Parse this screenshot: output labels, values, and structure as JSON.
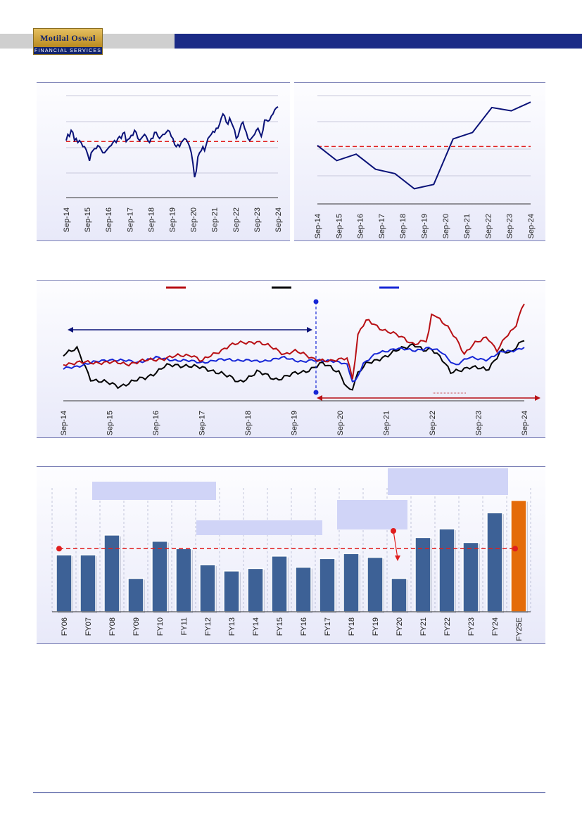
{
  "header": {
    "logo_top": "Motilal Oswal",
    "logo_bottom": "FINANCIAL SERVICES"
  },
  "charts": [
    {
      "type": "line",
      "x_ticks": [
        "Sep-14",
        "Sep-15",
        "Sep-16",
        "Sep-17",
        "Sep-18",
        "Sep-19",
        "Sep-20",
        "Sep-21",
        "Sep-22",
        "Sep-23",
        "Sep-24"
      ],
      "series_color": "#0a1278",
      "reference_color": "#e01e1e"
    },
    {
      "type": "line",
      "x_ticks": [
        "Sep-14",
        "Sep-15",
        "Sep-16",
        "Sep-17",
        "Sep-18",
        "Sep-19",
        "Sep-20",
        "Sep-21",
        "Sep-22",
        "Sep-23",
        "Sep-24"
      ],
      "series_color": "#0a1278",
      "reference_color": "#e01e1e"
    },
    {
      "type": "line",
      "x_ticks": [
        "Sep-14",
        "Sep-15",
        "Sep-16",
        "Sep-17",
        "Sep-18",
        "Sep-19",
        "Sep-20",
        "Sep-21",
        "Sep-22",
        "Sep-23",
        "Sep-24"
      ],
      "series_colors": [
        "#b80f14",
        "#000000",
        "#1626d6"
      ]
    },
    {
      "type": "bar",
      "categories": [
        "FY06",
        "FY07",
        "FY08",
        "FY09",
        "FY10",
        "FY11",
        "FY12",
        "FY13",
        "FY14",
        "FY15",
        "FY16",
        "FY17",
        "FY18",
        "FY19",
        "FY20",
        "FY21",
        "FY22",
        "FY23",
        "FY24",
        "FY25E"
      ],
      "bar_color": "#3d6196",
      "highlight_color": "#e46c0a"
    }
  ],
  "chart_data": [
    {
      "type": "line",
      "x_ticks": [
        "Sep-14",
        "Sep-15",
        "Sep-16",
        "Sep-17",
        "Sep-18",
        "Sep-19",
        "Sep-20",
        "Sep-21",
        "Sep-22",
        "Sep-23",
        "Sep-24"
      ],
      "y_range": [
        0,
        100
      ],
      "reference_value": 55,
      "series": [
        {
          "values": [
            56,
            62,
            60,
            66,
            64,
            56,
            58,
            54,
            56,
            54,
            50,
            50,
            47,
            42,
            36,
            44,
            46,
            48,
            48,
            51,
            50,
            47,
            44,
            44,
            46,
            48,
            50,
            51,
            54,
            56,
            54,
            58,
            60,
            58,
            63,
            64,
            55,
            57,
            58,
            61,
            61,
            66,
            64,
            58,
            56,
            58,
            60,
            62,
            60,
            56,
            54,
            58,
            58,
            64,
            64,
            60,
            58,
            60,
            62,
            62,
            64,
            66,
            65,
            60,
            58,
            52,
            50,
            52,
            50,
            54,
            56,
            58,
            57,
            54,
            50,
            44,
            34,
            20,
            26,
            40,
            44,
            46,
            50,
            46,
            52,
            58,
            60,
            62,
            65,
            64,
            68,
            68,
            72,
            78,
            82,
            80,
            74,
            72,
            78,
            74,
            70,
            66,
            58,
            60,
            66,
            72,
            74,
            68,
            64,
            58,
            56,
            58,
            60,
            62,
            66,
            68,
            64,
            60,
            66,
            76,
            76,
            75,
            76,
            80,
            82,
            86,
            88,
            89
          ]
        }
      ]
    },
    {
      "type": "line",
      "x_ticks": [
        "Sep-14",
        "Sep-15",
        "Sep-16",
        "Sep-17",
        "Sep-18",
        "Sep-19",
        "Sep-20",
        "Sep-21",
        "Sep-22",
        "Sep-23",
        "Sep-24"
      ],
      "y_range": [
        0,
        100
      ],
      "reference_value": 53,
      "series": [
        {
          "values": [
            54,
            40,
            46,
            32,
            28,
            14,
            18,
            60,
            66,
            89,
            86,
            94
          ]
        }
      ]
    },
    {
      "type": "line",
      "x_ticks": [
        "Sep-14",
        "Sep-15",
        "Sep-16",
        "Sep-17",
        "Sep-18",
        "Sep-19",
        "Sep-20",
        "Sep-21",
        "Sep-22",
        "Sep-23",
        "Sep-24"
      ],
      "y_range": [
        0,
        100
      ]
    },
    {
      "type": "bar",
      "categories": [
        "FY06",
        "FY07",
        "FY08",
        "FY09",
        "FY10",
        "FY11",
        "FY12",
        "FY13",
        "FY14",
        "FY15",
        "FY16",
        "FY17",
        "FY18",
        "FY19",
        "FY20",
        "FY21",
        "FY22",
        "FY23",
        "FY24",
        "FY25E"
      ],
      "values": [
        46,
        46,
        62,
        27,
        57,
        51,
        38,
        33,
        35,
        45,
        36,
        43,
        47,
        44,
        27,
        60,
        67,
        56,
        80,
        90
      ],
      "ylim": [
        0,
        100
      ],
      "reference_value": 51
    }
  ]
}
